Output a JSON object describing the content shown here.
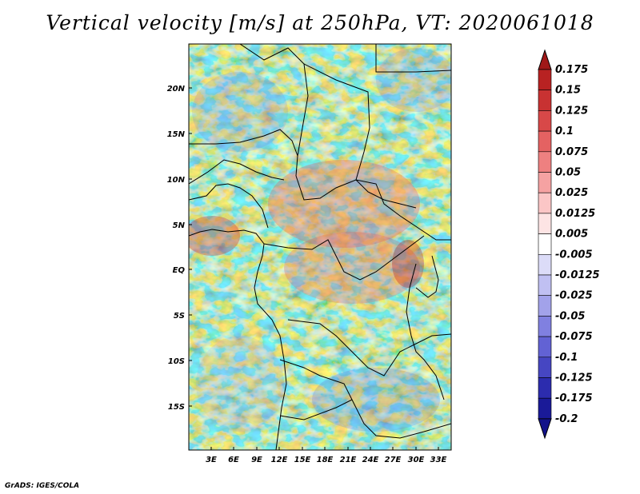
{
  "title": "Vertical velocity [m/s] at 250hPa, VT: 2020061018",
  "credit": "GrADS: IGES/COLA",
  "map": {
    "lat_ticks": [
      "20N",
      "15N",
      "10N",
      "5N",
      "EQ",
      "5S",
      "10S",
      "15S"
    ],
    "lon_ticks": [
      "3E",
      "6E",
      "9E",
      "12E",
      "15E",
      "18E",
      "21E",
      "24E",
      "27E",
      "30E",
      "33E"
    ],
    "lat_range": [
      -20,
      24
    ],
    "lon_range": [
      0,
      34.5
    ]
  },
  "colorbar": {
    "labels": [
      "0.175",
      "0.15",
      "0.125",
      "0.1",
      "0.075",
      "0.05",
      "0.025",
      "0.0125",
      "0.005",
      "-0.005",
      "-0.0125",
      "-0.025",
      "-0.05",
      "-0.075",
      "-0.1",
      "-0.125",
      "-0.175",
      "-0.2"
    ],
    "colors": [
      "#a01818",
      "#b82222",
      "#c83232",
      "#d84848",
      "#e46262",
      "#ee8080",
      "#f5a2a2",
      "#fbc6c6",
      "#fde4e4",
      "#ffffff",
      "#dcdcf8",
      "#c0c0f2",
      "#a2a2ea",
      "#8080e0",
      "#6262d4",
      "#4646c2",
      "#2c2cae",
      "#1a1a98",
      "#12128a"
    ]
  }
}
